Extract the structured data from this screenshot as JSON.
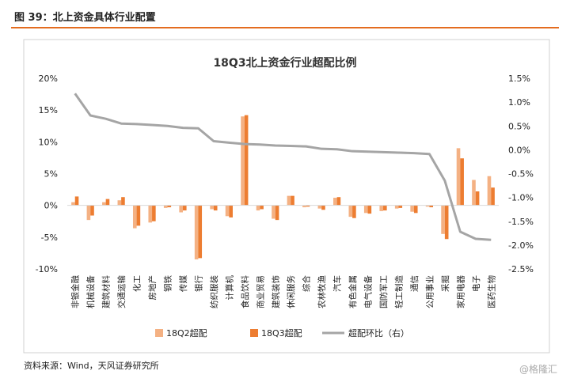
{
  "figure_title": "图 39：北上资金具体行业配置",
  "source_note": "资料来源：Wind，天风证券研究所",
  "watermark": "@格隆汇",
  "colors": {
    "q2": "#f4b183",
    "q3": "#ed7d31",
    "line": "#a5a5a5",
    "header_rule": "#e46c1f"
  },
  "chart_data": {
    "type": "bar",
    "title": "18Q3北上资金行业超配比例",
    "categories": [
      "非银金融",
      "机械设备",
      "建筑材料",
      "交通运输",
      "化工",
      "房地产",
      "钢铁",
      "传媒",
      "银行",
      "纺织服装",
      "计算机",
      "食品饮料",
      "商业贸易",
      "建筑装饰",
      "休闲服务",
      "综合",
      "农林牧渔",
      "汽车",
      "有色金属",
      "电气设备",
      "国防军工",
      "轻工制造",
      "通信",
      "公用事业",
      "采掘",
      "家用电器",
      "电子",
      "医药生物"
    ],
    "series": [
      {
        "name": "18Q2超配",
        "type": "bar",
        "axis": "left",
        "values": [
          0.5,
          -2.3,
          0.5,
          0.8,
          -3.6,
          -2.7,
          -0.4,
          -1.1,
          -8.5,
          -0.6,
          -1.7,
          14.0,
          -0.8,
          -2.1,
          1.5,
          -0.3,
          -0.5,
          1.2,
          -1.8,
          -1.2,
          -0.9,
          -0.5,
          -1.0,
          -0.2,
          -4.5,
          9.0,
          4.0,
          4.6
        ]
      },
      {
        "name": "18Q3超配",
        "type": "bar",
        "axis": "left",
        "values": [
          1.4,
          -1.6,
          1.0,
          1.3,
          -3.2,
          -2.5,
          -0.3,
          -0.8,
          -8.3,
          -0.8,
          -1.9,
          14.2,
          -0.6,
          -2.3,
          1.5,
          -0.2,
          -0.7,
          1.3,
          -2.0,
          -1.3,
          -0.8,
          -0.4,
          -1.2,
          -0.3,
          -5.3,
          7.4,
          2.2,
          2.8
        ]
      },
      {
        "name": "超配环比（右）",
        "type": "line",
        "axis": "right",
        "values": [
          1.18,
          0.72,
          0.65,
          0.55,
          0.54,
          0.52,
          0.5,
          0.46,
          0.45,
          0.18,
          0.15,
          0.12,
          0.11,
          0.09,
          0.08,
          0.07,
          0.02,
          0.01,
          -0.03,
          -0.04,
          -0.05,
          -0.06,
          -0.07,
          -0.09,
          -0.65,
          -1.72,
          -1.87,
          -1.89
        ]
      }
    ],
    "y_left": {
      "min": -10,
      "max": 20,
      "ticks": [
        "20%",
        "15%",
        "10%",
        "5%",
        "0%",
        "-5%",
        "-10%"
      ]
    },
    "y_right": {
      "min": -2.5,
      "max": 1.5,
      "ticks": [
        "1.5%",
        "1.0%",
        "0.5%",
        "0.0%",
        "-0.5%",
        "-1.0%",
        "-1.5%",
        "-2.0%",
        "-2.5%"
      ]
    },
    "legend_position": "bottom",
    "grid": false
  }
}
